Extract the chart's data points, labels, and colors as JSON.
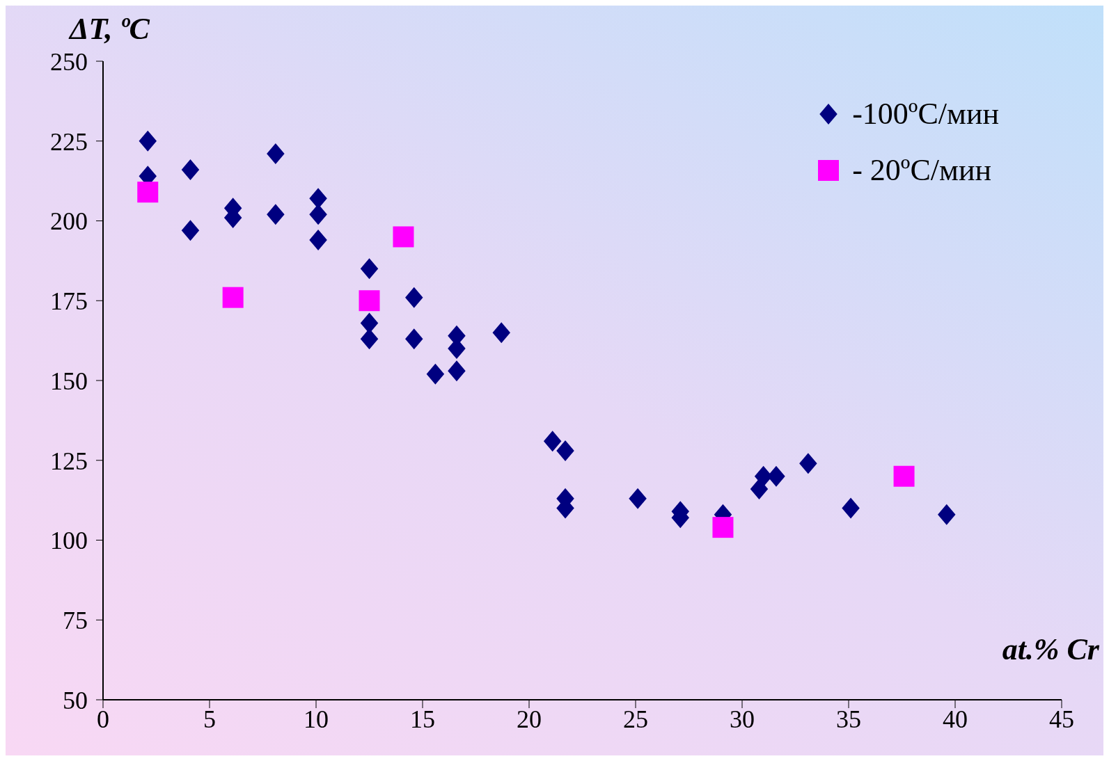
{
  "chart_data": {
    "type": "scatter",
    "xlabel": "at.% Cr",
    "ylabel": "ΔT, ºC",
    "xlim": [
      0,
      45
    ],
    "xticks": [
      0,
      5,
      10,
      15,
      20,
      25,
      30,
      35,
      40,
      45
    ],
    "ylim": [
      50,
      250
    ],
    "yticks": [
      50,
      75,
      100,
      125,
      150,
      175,
      200,
      225,
      250
    ],
    "legend": "top right",
    "series": [
      {
        "name": "-100ºC/мин",
        "color": "#000080",
        "marker": "diamond",
        "x": [
          2.1,
          2.1,
          4.1,
          4.1,
          6.1,
          6.1,
          8.1,
          8.1,
          10.1,
          10.1,
          10.1,
          12.5,
          12.5,
          12.5,
          14.6,
          14.6,
          15.6,
          16.6,
          16.6,
          16.6,
          18.7,
          21.1,
          21.7,
          21.7,
          21.7,
          25.1,
          27.1,
          27.1,
          29.1,
          30.8,
          31.0,
          31.6,
          33.1,
          35.1,
          37.6,
          39.6
        ],
        "values": [
          225,
          214,
          216,
          197,
          204,
          201,
          221,
          202,
          207,
          202,
          194,
          185,
          168,
          163,
          176,
          163,
          152,
          164,
          160,
          153,
          165,
          131,
          128,
          113,
          110,
          113,
          109,
          107,
          108,
          116,
          120,
          120,
          124,
          110,
          null,
          108
        ]
      },
      {
        "name": "- 20ºC/мин",
        "color": "#ff00ff",
        "marker": "square",
        "x": [
          2.1,
          6.1,
          12.5,
          14.1,
          29.1,
          37.6
        ],
        "values": [
          209,
          176,
          175,
          195,
          104,
          120
        ]
      }
    ]
  }
}
